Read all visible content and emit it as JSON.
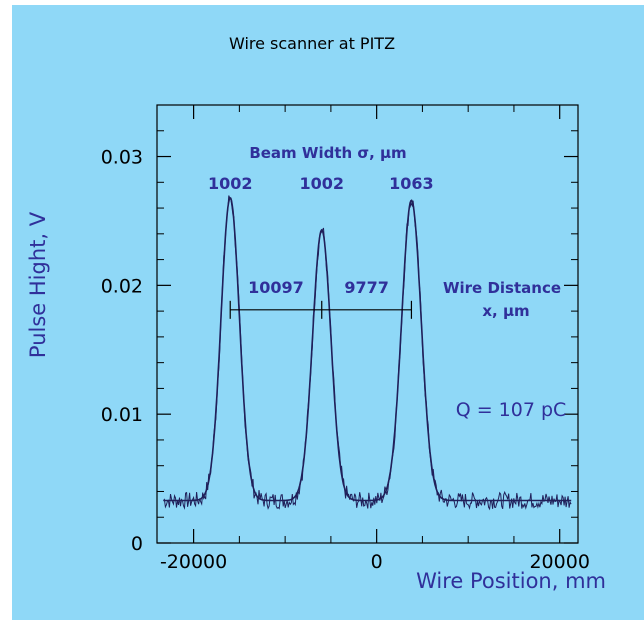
{
  "chart_data": {
    "type": "line",
    "title": "Wire scanner at PITZ",
    "xlabel": "Wire Position, mm",
    "ylabel": "Pulse Hight, V",
    "xlim": [
      -24000,
      22000
    ],
    "ylim": [
      0,
      0.034
    ],
    "x_ticks": [
      -20000,
      0,
      20000
    ],
    "x_tick_labels": [
      "-20000",
      "0",
      "20000"
    ],
    "y_ticks": [
      0,
      0.01,
      0.02,
      0.03
    ],
    "y_tick_labels": [
      "0",
      "0.01",
      "0.02",
      "0.03"
    ],
    "grid": false,
    "colors": {
      "background": "#8fd8f7",
      "curve": "#20205a",
      "label": "#30309a"
    },
    "baseline": 0.0033,
    "series": [
      {
        "kind": "measured-noisy"
      },
      {
        "kind": "gaussian-fit"
      }
    ],
    "peaks": [
      {
        "center": -16000,
        "amplitude": 0.0268,
        "width": 1002,
        "width_label": "1002"
      },
      {
        "center": -6000,
        "amplitude": 0.0243,
        "width": 1002,
        "width_label": "1002"
      },
      {
        "center": 3800,
        "amplitude": 0.0266,
        "width": 1063,
        "width_label": "1063"
      }
    ],
    "beam_width_label": "Beam Width σ, μm",
    "wire_distance_label_1": "Wire Distance",
    "wire_distance_label_2": "x, μm",
    "distances": [
      {
        "label": "10097",
        "from": -16000,
        "to": -6000
      },
      {
        "label": "9777",
        "from": -6000,
        "to": 3800
      }
    ],
    "distance_line_y": 0.0181,
    "charge_label": "Q = 107 pC"
  }
}
